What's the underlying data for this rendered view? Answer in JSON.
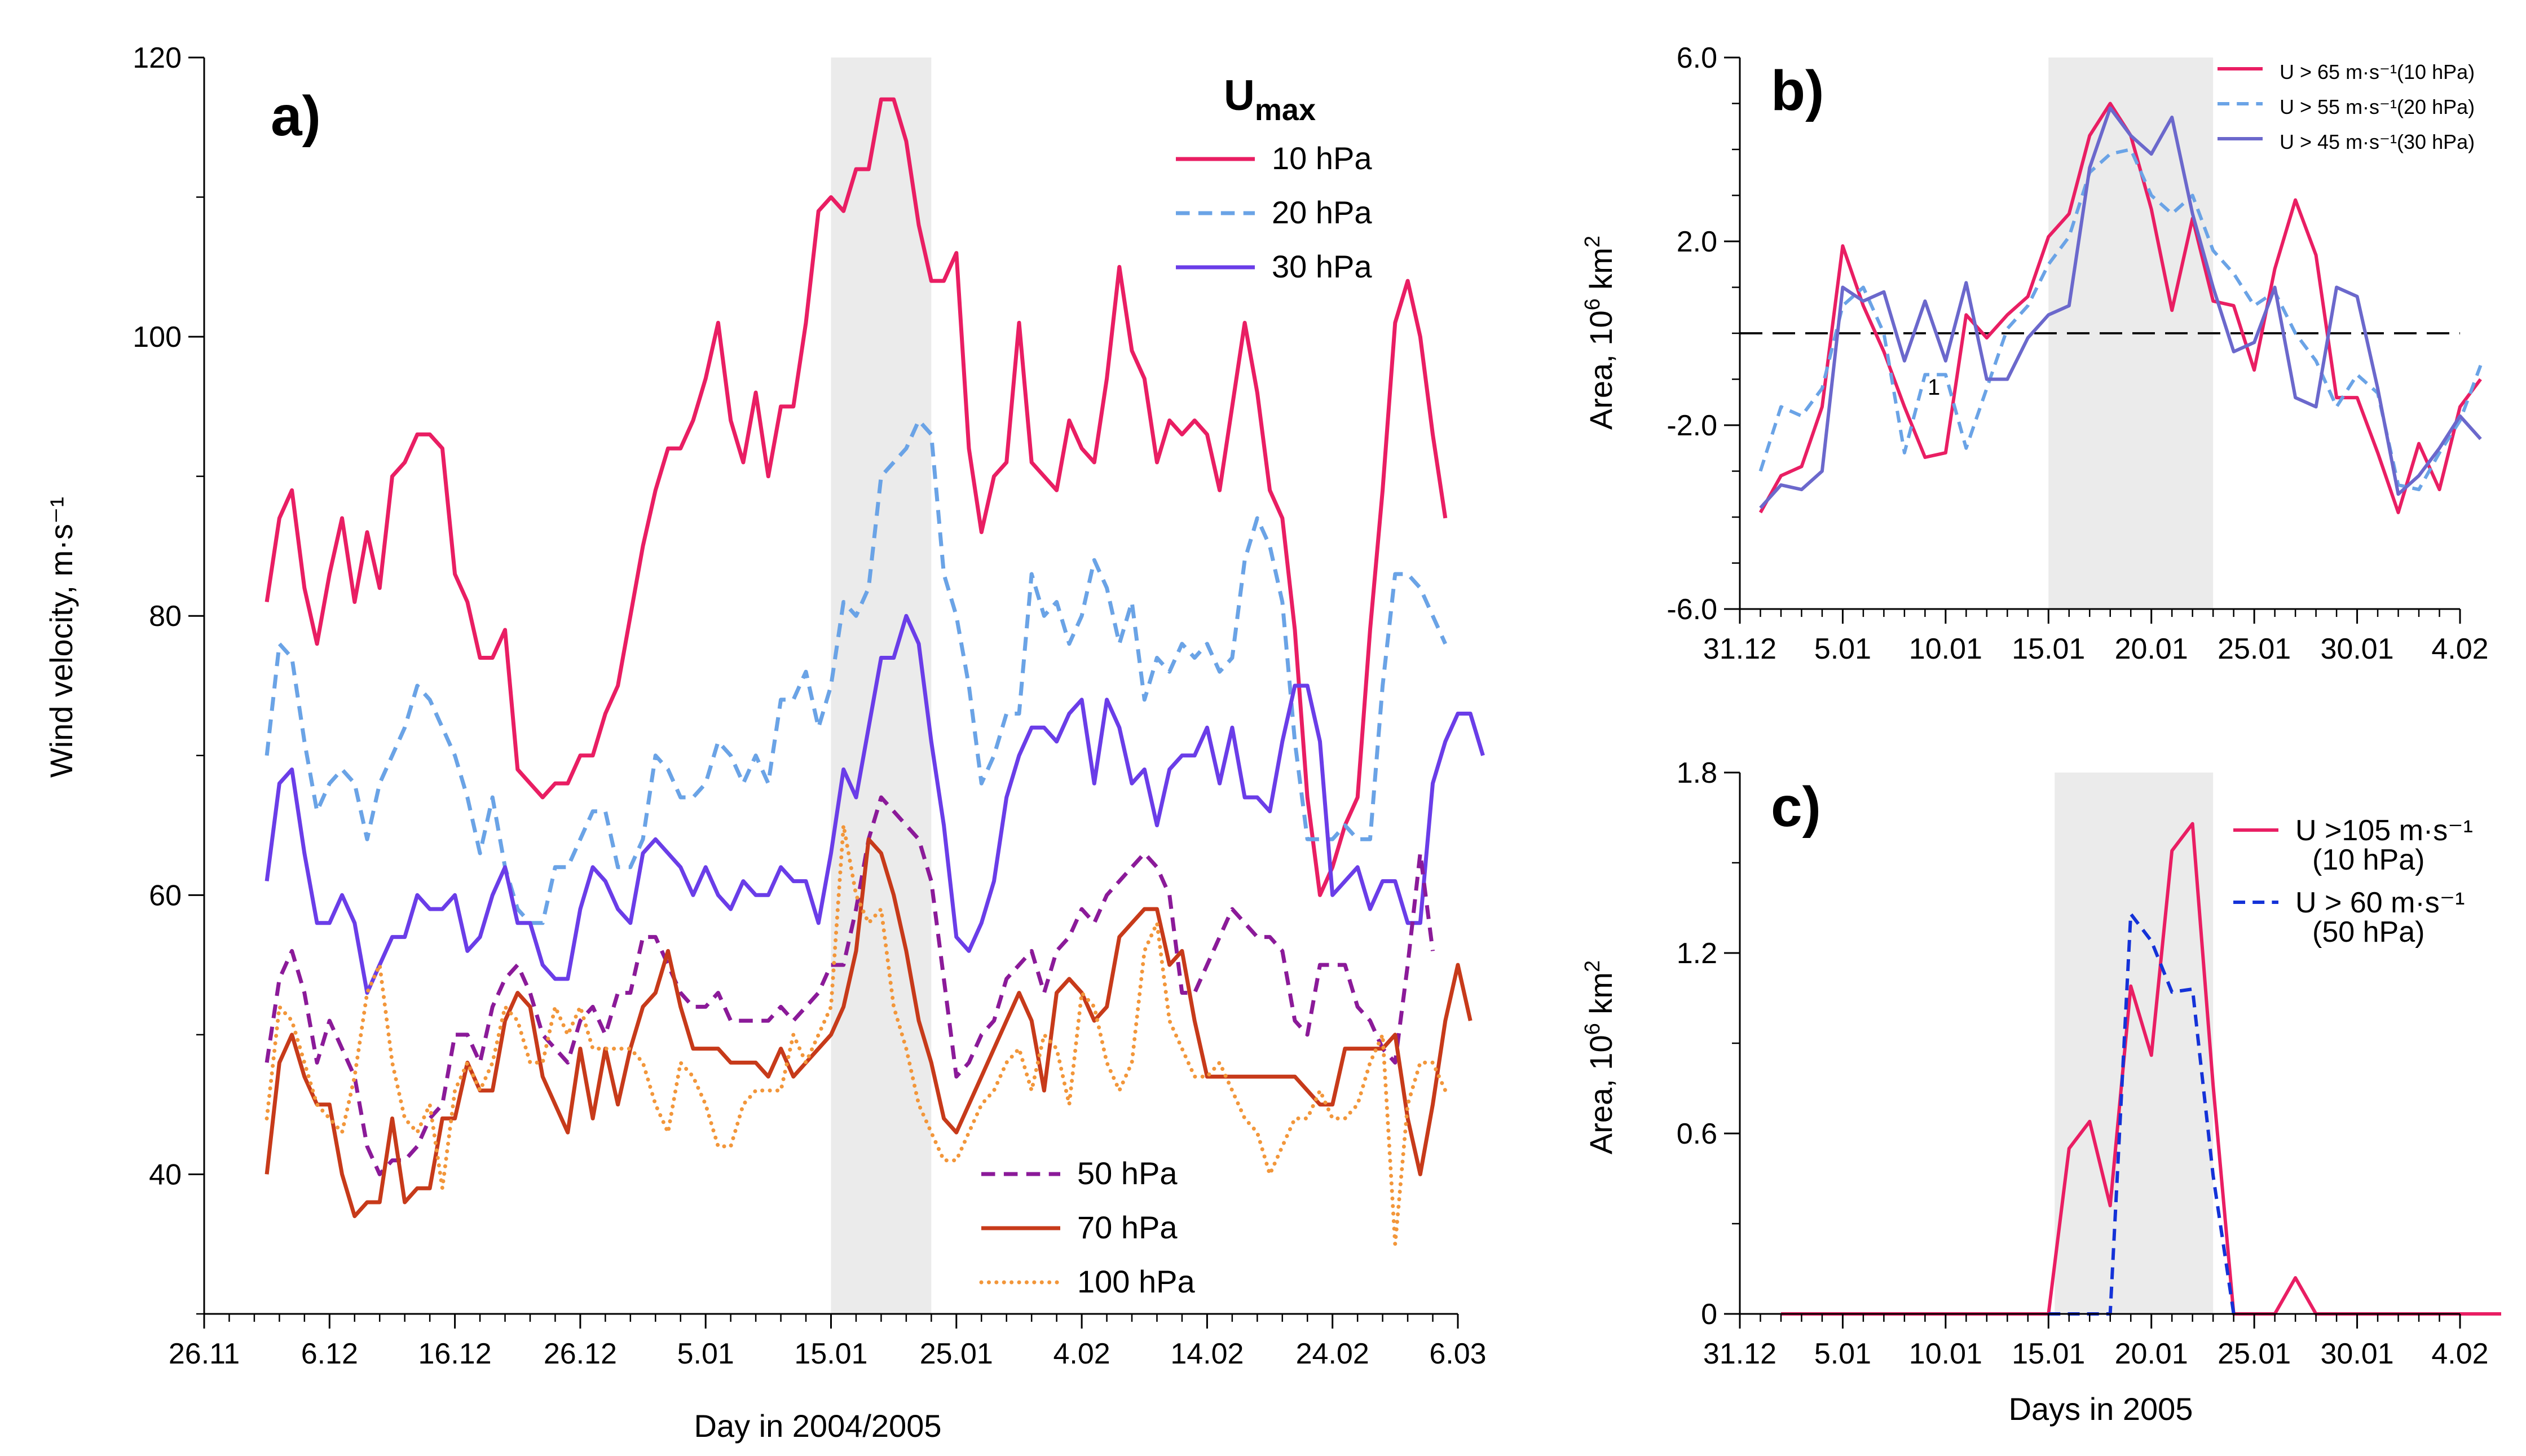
{
  "chart_data": [
    {
      "id": "a",
      "type": "line",
      "panel_label": "a)",
      "xlabel": "Day in 2004/2005",
      "ylabel": "Wind velocity, m·s⁻¹",
      "legend_title_main": "U",
      "legend_title_sub": "max",
      "ylim": [
        30,
        120
      ],
      "yticks": [
        "40",
        "60",
        "80",
        "100",
        "120"
      ],
      "x_day_range": [
        0,
        100
      ],
      "xticks": [
        "26.11",
        "6.12",
        "16.12",
        "26.12",
        "5.01",
        "15.01",
        "25.01",
        "4.02",
        "14.02",
        "24.02",
        "6.03"
      ],
      "shade_day_range": [
        50,
        58
      ],
      "x_start_day": 5,
      "series": [
        {
          "name": "10 hPa",
          "color": "#e91e63",
          "dash": "solid",
          "values": [
            81,
            87,
            89,
            82,
            78,
            83,
            87,
            81,
            86,
            82,
            90,
            91,
            93,
            93,
            92,
            83,
            81,
            77,
            77,
            79,
            69,
            68,
            67,
            68,
            68,
            70,
            70,
            73,
            75,
            80,
            85,
            89,
            92,
            92,
            94,
            97,
            101,
            94,
            91,
            96,
            90,
            95,
            95,
            101,
            109,
            110,
            109,
            112,
            112,
            117,
            117,
            114,
            108,
            104,
            104,
            106,
            92,
            86,
            90,
            91,
            101,
            91,
            90,
            89,
            94,
            92,
            91,
            97,
            105,
            99,
            97,
            91,
            94,
            93,
            94,
            93,
            89,
            95,
            101,
            96,
            89,
            87,
            79,
            67,
            60,
            62,
            65,
            67,
            79,
            89,
            101,
            104,
            100,
            93,
            87
          ]
        },
        {
          "name": "20 hPa",
          "color": "#6aa3e6",
          "dash": "dashed",
          "values": [
            70,
            78,
            77,
            71,
            66,
            68,
            69,
            68,
            64,
            68,
            70,
            72,
            75,
            74,
            72,
            70,
            67,
            63,
            67,
            62,
            59,
            58,
            58,
            62,
            62,
            64,
            66,
            66,
            62,
            62,
            64,
            70,
            69,
            67,
            67,
            68,
            71,
            70,
            68,
            70,
            68,
            74,
            74,
            76,
            72,
            75,
            81,
            80,
            82,
            90,
            91,
            92,
            94,
            93,
            83,
            80,
            75,
            68,
            70,
            73,
            73,
            83,
            80,
            81,
            78,
            80,
            84,
            82,
            78,
            81,
            74,
            77,
            76,
            78,
            77,
            78,
            76,
            77,
            84,
            87,
            85,
            81,
            71,
            64,
            64,
            64,
            65,
            64,
            64,
            75,
            83,
            83,
            82,
            80,
            78
          ]
        },
        {
          "name": "30 hPa",
          "color": "#6a3de8",
          "dash": "solid",
          "values": [
            61,
            68,
            69,
            63,
            58,
            58,
            60,
            58,
            53,
            55,
            57,
            57,
            60,
            59,
            59,
            60,
            56,
            57,
            60,
            62,
            58,
            58,
            55,
            54,
            54,
            59,
            62,
            61,
            59,
            58,
            63,
            64,
            63,
            62,
            60,
            62,
            60,
            59,
            61,
            60,
            60,
            62,
            61,
            61,
            58,
            63,
            69,
            67,
            72,
            77,
            77,
            80,
            78,
            71,
            65,
            57,
            56,
            58,
            61,
            67,
            70,
            72,
            72,
            71,
            73,
            74,
            68,
            74,
            72,
            68,
            69,
            65,
            69,
            70,
            70,
            72,
            68,
            72,
            67,
            67,
            66,
            71,
            75,
            75,
            71,
            60,
            61,
            62,
            59,
            61,
            61,
            58,
            58,
            68,
            71,
            73,
            73,
            70
          ]
        },
        {
          "name": "50 hPa",
          "color": "#8b1a99",
          "dash": "dashed",
          "values": [
            48,
            54,
            56,
            53,
            48,
            51,
            49,
            47,
            42,
            40,
            41,
            41,
            42,
            44,
            45,
            50,
            50,
            48,
            52,
            54,
            55,
            53,
            50,
            49,
            48,
            51,
            52,
            50,
            53,
            53,
            57,
            57,
            55,
            53,
            52,
            52,
            53,
            51,
            51,
            51,
            51,
            52,
            51,
            52,
            53,
            55,
            55,
            59,
            64,
            67,
            66,
            65,
            64,
            61,
            54,
            47,
            48,
            50,
            51,
            54,
            55,
            56,
            53,
            56,
            57,
            59,
            58,
            60,
            61,
            62,
            63,
            62,
            60,
            53,
            53,
            55,
            57,
            59,
            58,
            57,
            57,
            56,
            51,
            50,
            55,
            55,
            55,
            52,
            51,
            49,
            48,
            55,
            63,
            56
          ]
        },
        {
          "name": "70 hPa",
          "color": "#c73a1a",
          "dash": "solid",
          "values": [
            40,
            48,
            50,
            47,
            45,
            45,
            40,
            37,
            38,
            38,
            44,
            38,
            39,
            39,
            44,
            44,
            48,
            46,
            46,
            51,
            53,
            52,
            47,
            45,
            43,
            49,
            44,
            49,
            45,
            49,
            52,
            53,
            56,
            52,
            49,
            49,
            49,
            48,
            48,
            48,
            47,
            49,
            47,
            48,
            49,
            50,
            52,
            56,
            64,
            63,
            60,
            56,
            51,
            48,
            44,
            43,
            45,
            47,
            49,
            51,
            53,
            51,
            46,
            53,
            54,
            53,
            51,
            52,
            57,
            58,
            59,
            59,
            55,
            56,
            51,
            47,
            47,
            47,
            47,
            47,
            47,
            47,
            47,
            46,
            45,
            45,
            49,
            49,
            49,
            49,
            50,
            44,
            40,
            45,
            51,
            55,
            51
          ]
        },
        {
          "name": "100 hPa",
          "color": "#f2963a",
          "dash": "dotted",
          "values": [
            44,
            52,
            51,
            48,
            45,
            44,
            43,
            47,
            53,
            55,
            48,
            44,
            43,
            45,
            39,
            46,
            48,
            46,
            48,
            52,
            51,
            48,
            48,
            52,
            50,
            52,
            49,
            49,
            49,
            49,
            48,
            45,
            43,
            48,
            47,
            45,
            42,
            42,
            45,
            46,
            46,
            46,
            50,
            48,
            50,
            52,
            65,
            60,
            58,
            59,
            52,
            49,
            45,
            43,
            41,
            41,
            43,
            45,
            46,
            48,
            49,
            46,
            50,
            49,
            45,
            53,
            52,
            48,
            46,
            48,
            56,
            58,
            51,
            49,
            47,
            47,
            48,
            46,
            44,
            43,
            40,
            42,
            44,
            44,
            46,
            44,
            44,
            45,
            48,
            50,
            35,
            45,
            48,
            48,
            46
          ]
        }
      ]
    },
    {
      "id": "b",
      "type": "line",
      "panel_label": "b)",
      "xlabel": "",
      "ylabel": "Area, 10⁶ km²",
      "ylim": [
        -6,
        6
      ],
      "yticks": [
        "-6.0",
        "-2.0",
        "2.0",
        "6.0"
      ],
      "xticks": [
        "31.12",
        "5.01",
        "10.01",
        "15.01",
        "20.01",
        "25.01",
        "30.01",
        "4.02"
      ],
      "shade_day_range": [
        15,
        23
      ],
      "reference_line": 0,
      "annotation": "1",
      "x_start_day": 1,
      "series": [
        {
          "name": "U > 65 m·s⁻¹(10 hPa)",
          "color": "#e91e63",
          "dash": "solid",
          "values": [
            -3.9,
            -3.1,
            -2.9,
            -1.6,
            1.9,
            0.6,
            -0.4,
            -1.6,
            -2.7,
            -2.6,
            0.4,
            -0.1,
            0.4,
            0.8,
            2.1,
            2.6,
            4.3,
            5.0,
            4.3,
            2.7,
            0.5,
            2.5,
            0.7,
            0.6,
            -0.8,
            1.4,
            2.9,
            1.7,
            -1.4,
            -1.4,
            -2.6,
            -3.9,
            -2.4,
            -3.4,
            -1.6,
            -1.0
          ]
        },
        {
          "name": "U > 55 m·s⁻¹(20 hPa)",
          "color": "#6aa3e6",
          "dash": "dashed",
          "values": [
            -3.0,
            -1.6,
            -1.8,
            -1.2,
            0.6,
            1.0,
            0.0,
            -2.6,
            -0.9,
            -0.9,
            -2.5,
            -1.2,
            0.1,
            0.6,
            1.5,
            2.1,
            3.5,
            3.9,
            4.0,
            3.0,
            2.6,
            3.0,
            1.8,
            1.3,
            0.6,
            0.9,
            0.0,
            -0.6,
            -1.6,
            -0.9,
            -1.3,
            -3.3,
            -3.4,
            -2.6,
            -1.9,
            -0.7
          ]
        },
        {
          "name": "U > 45 m·s⁻¹(30 hPa)",
          "color": "#6b68cc",
          "dash": "solid",
          "values": [
            -3.8,
            -3.3,
            -3.4,
            -3.0,
            1.0,
            0.7,
            0.9,
            -0.6,
            0.7,
            -0.6,
            1.1,
            -1.0,
            -1.0,
            -0.1,
            0.4,
            0.6,
            3.6,
            4.9,
            4.3,
            3.9,
            4.7,
            2.6,
            1.0,
            -0.4,
            -0.2,
            1.0,
            -1.4,
            -1.6,
            1.0,
            0.8,
            -1.2,
            -3.5,
            -3.1,
            -2.5,
            -1.8,
            -2.3
          ]
        }
      ]
    },
    {
      "id": "c",
      "type": "line",
      "panel_label": "c)",
      "xlabel": "Days in 2005",
      "ylabel": "Area, 10⁶ km²",
      "ylim": [
        0,
        1.8
      ],
      "yticks": [
        "0",
        "0.6",
        "1.2",
        "1.8"
      ],
      "xticks": [
        "31.12",
        "5.01",
        "10.01",
        "15.01",
        "20.01",
        "25.01",
        "30.01",
        "4.02"
      ],
      "shade_day_range": [
        15.3,
        23
      ],
      "x_start_day": 2,
      "series": [
        {
          "name": "U >105 m·s⁻¹",
          "name_line2": "(10 hPa)",
          "color": "#e91e63",
          "dash": "solid",
          "values": [
            0,
            0,
            0,
            0,
            0,
            0,
            0,
            0,
            0,
            0,
            0,
            0,
            0,
            0,
            0.55,
            0.64,
            0.36,
            1.09,
            0.86,
            1.54,
            1.63,
            0.76,
            0,
            0,
            0,
            0.12,
            0,
            0,
            0,
            0,
            0,
            0,
            0,
            0,
            0,
            0
          ]
        },
        {
          "name": "U > 60 m·s⁻¹",
          "name_line2": "(50 hPa)",
          "color": "#1432d8",
          "dash": "dashed",
          "values": [
            null,
            null,
            null,
            null,
            null,
            null,
            null,
            null,
            null,
            null,
            null,
            null,
            null,
            0,
            0,
            0,
            0,
            1.33,
            1.24,
            1.07,
            1.08,
            0.46,
            0
          ]
        }
      ]
    }
  ]
}
